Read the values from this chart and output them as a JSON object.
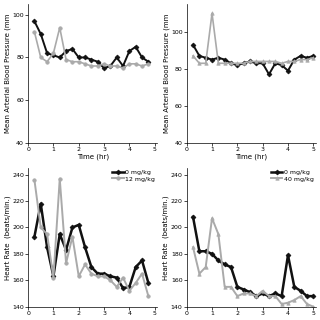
{
  "top_left": {
    "xlabel": "Time (hr)",
    "ylabel": "Mean Arterial Blood Pressure (mm",
    "ylim": [
      40,
      105
    ],
    "yticks": [
      40,
      60,
      80,
      100
    ],
    "xlim": [
      0,
      5.1
    ],
    "xticks": [
      0,
      1,
      2,
      3,
      4,
      5
    ],
    "series": {
      "0 mg/kg": {
        "color": "#111111",
        "marker": "D",
        "markersize": 2.5,
        "linewidth": 1.4,
        "x": [
          0.25,
          0.5,
          0.75,
          1.0,
          1.25,
          1.5,
          1.75,
          2.0,
          2.25,
          2.5,
          2.75,
          3.0,
          3.25,
          3.5,
          3.75,
          4.0,
          4.25,
          4.5,
          4.75
        ],
        "y": [
          97,
          91,
          82,
          81,
          80,
          83,
          84,
          80,
          80,
          79,
          78,
          75,
          76,
          80,
          76,
          83,
          85,
          80,
          78
        ]
      },
      "12 mg/kg": {
        "color": "#aaaaaa",
        "marker": "o",
        "markersize": 2.5,
        "linewidth": 1.2,
        "x": [
          0.25,
          0.5,
          0.75,
          1.0,
          1.25,
          1.5,
          1.75,
          2.0,
          2.25,
          2.5,
          2.75,
          3.0,
          3.25,
          3.5,
          3.75,
          4.0,
          4.25,
          4.5,
          4.75
        ],
        "y": [
          92,
          80,
          78,
          82,
          94,
          79,
          78,
          78,
          77,
          76,
          76,
          77,
          76,
          76,
          75,
          77,
          77,
          76,
          77
        ]
      }
    }
  },
  "top_right": {
    "xlabel": "Time (hr)",
    "ylabel": "Mean Arterial Blood Pressure (mm",
    "ylim": [
      40,
      115
    ],
    "yticks": [
      40,
      60,
      80,
      100
    ],
    "xlim": [
      0,
      5.1
    ],
    "xticks": [
      0,
      1,
      2,
      3,
      4,
      5
    ],
    "series": {
      "0 mg/kg": {
        "color": "#111111",
        "marker": "D",
        "markersize": 2.5,
        "linewidth": 1.4,
        "x": [
          0.25,
          0.5,
          0.75,
          1.0,
          1.25,
          1.5,
          1.75,
          2.0,
          2.25,
          2.5,
          2.75,
          3.0,
          3.25,
          3.5,
          3.75,
          4.0,
          4.25,
          4.5,
          4.75,
          5.0
        ],
        "y": [
          93,
          87,
          86,
          85,
          86,
          85,
          83,
          82,
          83,
          84,
          83,
          83,
          77,
          83,
          82,
          79,
          85,
          87,
          86,
          87
        ]
      },
      "40 mg/kg": {
        "color": "#aaaaaa",
        "marker": "^",
        "markersize": 2.5,
        "linewidth": 1.2,
        "x": [
          0.25,
          0.5,
          0.75,
          1.0,
          1.25,
          1.5,
          1.75,
          2.0,
          2.25,
          2.5,
          2.75,
          3.0,
          3.25,
          3.5,
          3.75,
          4.0,
          4.25,
          4.5,
          4.75,
          5.0
        ],
        "y": [
          87,
          83,
          83,
          110,
          83,
          83,
          83,
          83,
          83,
          84,
          84,
          84,
          84,
          84,
          83,
          84,
          84,
          85,
          85,
          86
        ]
      }
    }
  },
  "bottom_left": {
    "xlabel": "",
    "ylabel": "Heart Rate  (beats/min.)",
    "ylim": [
      140,
      245
    ],
    "yticks": [
      140,
      160,
      180,
      200,
      220,
      240
    ],
    "xlim": [
      0,
      5.1
    ],
    "xticks": [
      0,
      1,
      2,
      3,
      4,
      5
    ],
    "legend_entries": [
      "0 mg/kg",
      "12 mg/kg"
    ],
    "series": {
      "0 mg/kg": {
        "color": "#111111",
        "marker": "D",
        "markersize": 2.5,
        "linewidth": 1.8,
        "x": [
          0.25,
          0.5,
          0.75,
          1.0,
          1.25,
          1.5,
          1.75,
          2.0,
          2.25,
          2.5,
          2.75,
          3.0,
          3.25,
          3.5,
          3.75,
          4.0,
          4.25,
          4.5,
          4.75
        ],
        "y": [
          193,
          218,
          185,
          163,
          195,
          183,
          200,
          202,
          185,
          170,
          165,
          165,
          163,
          162,
          154,
          155,
          170,
          175,
          158
        ]
      },
      "12 mg/kg": {
        "color": "#aaaaaa",
        "marker": "o",
        "markersize": 2.5,
        "linewidth": 1.4,
        "x": [
          0.25,
          0.5,
          0.75,
          1.0,
          1.25,
          1.5,
          1.75,
          2.0,
          2.25,
          2.5,
          2.75,
          3.0,
          3.25,
          3.5,
          3.75,
          4.0,
          4.25,
          4.5,
          4.75
        ],
        "y": [
          236,
          200,
          195,
          162,
          237,
          173,
          193,
          163,
          172,
          165,
          163,
          163,
          160,
          155,
          162,
          152,
          158,
          165,
          148
        ]
      }
    }
  },
  "bottom_right": {
    "xlabel": "",
    "ylabel": "Heart Rate  (beats/min.)",
    "ylim": [
      140,
      245
    ],
    "yticks": [
      140,
      160,
      180,
      200,
      220,
      240
    ],
    "xlim": [
      0,
      5.1
    ],
    "xticks": [
      0,
      1,
      2,
      3,
      4,
      5
    ],
    "legend_entries": [
      "0 mg/kg",
      "40 mg/kg"
    ],
    "series": {
      "0 mg/kg": {
        "color": "#111111",
        "marker": "D",
        "markersize": 2.5,
        "linewidth": 1.8,
        "x": [
          0.25,
          0.5,
          0.75,
          1.0,
          1.25,
          1.5,
          1.75,
          2.0,
          2.25,
          2.5,
          2.75,
          3.0,
          3.25,
          3.5,
          3.75,
          4.0,
          4.25,
          4.5,
          4.75,
          5.0
        ],
        "y": [
          208,
          182,
          182,
          180,
          175,
          172,
          170,
          155,
          153,
          151,
          148,
          150,
          148,
          150,
          148,
          179,
          155,
          152,
          148,
          148
        ]
      },
      "40 mg/kg": {
        "color": "#aaaaaa",
        "marker": "^",
        "markersize": 2.5,
        "linewidth": 1.4,
        "x": [
          0.25,
          0.5,
          0.75,
          1.0,
          1.25,
          1.5,
          1.75,
          2.0,
          2.25,
          2.5,
          2.75,
          3.0,
          3.25,
          3.5,
          3.75,
          4.0,
          4.25,
          4.5,
          4.75,
          5.0
        ],
        "y": [
          185,
          165,
          170,
          207,
          195,
          155,
          155,
          148,
          150,
          150,
          148,
          152,
          148,
          148,
          142,
          143,
          145,
          148,
          142,
          140
        ]
      }
    }
  },
  "background_color": "#ffffff",
  "tick_fontsize": 4.5,
  "label_fontsize": 5.0,
  "legend_fontsize": 4.5
}
